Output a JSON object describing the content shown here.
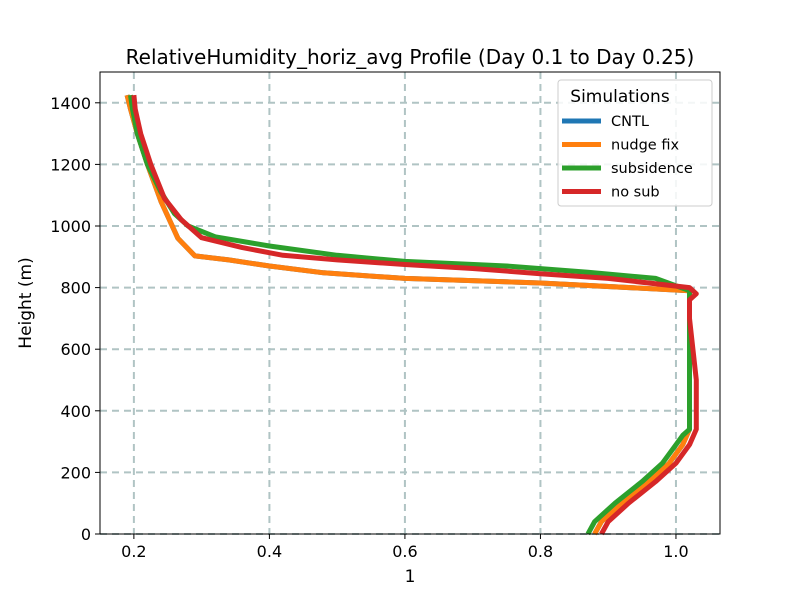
{
  "chart_data": {
    "type": "line",
    "title": "RelativeHumidity_horiz_avg Profile (Day 0.1 to Day 0.25)",
    "xlabel": "1",
    "ylabel": "Height (m)",
    "xlim": [
      0.15,
      1.065
    ],
    "ylim": [
      0,
      1500
    ],
    "xticks": [
      0.2,
      0.4,
      0.6,
      0.8,
      1.0
    ],
    "xtick_labels": [
      "0.2",
      "0.4",
      "0.6",
      "0.8",
      "1.0"
    ],
    "yticks": [
      0,
      200,
      400,
      600,
      800,
      1000,
      1200,
      1400
    ],
    "ytick_labels": [
      "0",
      "200",
      "400",
      "600",
      "800",
      "1000",
      "1200",
      "1400"
    ],
    "grid": true,
    "legend": {
      "title": "Simulations",
      "placement": "top-right"
    },
    "series": [
      {
        "name": "CNTL",
        "color": "#1f77b4",
        "points": [
          [
            0.88,
            0
          ],
          [
            0.89,
            40
          ],
          [
            0.92,
            100
          ],
          [
            0.96,
            170
          ],
          [
            0.99,
            230
          ],
          [
            1.01,
            290
          ],
          [
            1.02,
            340
          ],
          [
            1.02,
            400
          ],
          [
            1.02,
            500
          ],
          [
            1.02,
            600
          ],
          [
            1.02,
            700
          ],
          [
            1.02,
            760
          ],
          [
            1.02,
            790
          ],
          [
            0.8,
            815
          ],
          [
            0.6,
            830
          ],
          [
            0.48,
            848
          ],
          [
            0.4,
            870
          ],
          [
            0.34,
            890
          ],
          [
            0.29,
            903
          ],
          [
            0.265,
            960
          ],
          [
            0.24,
            1080
          ],
          [
            0.22,
            1200
          ],
          [
            0.205,
            1300
          ],
          [
            0.195,
            1380
          ],
          [
            0.19,
            1425
          ]
        ]
      },
      {
        "name": "nudge fix",
        "color": "#ff7f0e",
        "points": [
          [
            0.88,
            0
          ],
          [
            0.89,
            40
          ],
          [
            0.92,
            100
          ],
          [
            0.96,
            170
          ],
          [
            0.99,
            230
          ],
          [
            1.01,
            290
          ],
          [
            1.02,
            340
          ],
          [
            1.02,
            400
          ],
          [
            1.02,
            500
          ],
          [
            1.02,
            600
          ],
          [
            1.02,
            700
          ],
          [
            1.02,
            760
          ],
          [
            1.02,
            790
          ],
          [
            0.8,
            815
          ],
          [
            0.6,
            830
          ],
          [
            0.48,
            848
          ],
          [
            0.4,
            870
          ],
          [
            0.34,
            890
          ],
          [
            0.29,
            903
          ],
          [
            0.265,
            960
          ],
          [
            0.24,
            1080
          ],
          [
            0.22,
            1200
          ],
          [
            0.205,
            1300
          ],
          [
            0.195,
            1380
          ],
          [
            0.19,
            1425
          ]
        ]
      },
      {
        "name": "subsidence",
        "color": "#2ca02c",
        "points": [
          [
            0.87,
            0
          ],
          [
            0.88,
            40
          ],
          [
            0.91,
            100
          ],
          [
            0.95,
            170
          ],
          [
            0.98,
            230
          ],
          [
            1.0,
            290
          ],
          [
            1.01,
            320
          ],
          [
            1.02,
            340
          ],
          [
            1.02,
            400
          ],
          [
            1.02,
            500
          ],
          [
            1.02,
            600
          ],
          [
            1.02,
            700
          ],
          [
            1.02,
            780
          ],
          [
            1.02,
            790
          ],
          [
            0.97,
            830
          ],
          [
            0.87,
            850
          ],
          [
            0.75,
            870
          ],
          [
            0.6,
            885
          ],
          [
            0.5,
            905
          ],
          [
            0.4,
            935
          ],
          [
            0.32,
            965
          ],
          [
            0.28,
            1000
          ],
          [
            0.26,
            1040
          ],
          [
            0.24,
            1110
          ],
          [
            0.22,
            1200
          ],
          [
            0.205,
            1300
          ],
          [
            0.198,
            1380
          ],
          [
            0.195,
            1425
          ]
        ]
      },
      {
        "name": "no sub",
        "color": "#d62728",
        "points": [
          [
            0.89,
            0
          ],
          [
            0.9,
            40
          ],
          [
            0.93,
            100
          ],
          [
            0.97,
            170
          ],
          [
            1.0,
            230
          ],
          [
            1.02,
            290
          ],
          [
            1.03,
            340
          ],
          [
            1.03,
            400
          ],
          [
            1.03,
            500
          ],
          [
            1.025,
            600
          ],
          [
            1.02,
            700
          ],
          [
            1.02,
            760
          ],
          [
            1.03,
            780
          ],
          [
            1.02,
            800
          ],
          [
            0.9,
            830
          ],
          [
            0.8,
            845
          ],
          [
            0.7,
            862
          ],
          [
            0.6,
            875
          ],
          [
            0.5,
            890
          ],
          [
            0.42,
            905
          ],
          [
            0.36,
            930
          ],
          [
            0.3,
            962
          ],
          [
            0.27,
            1020
          ],
          [
            0.245,
            1090
          ],
          [
            0.225,
            1200
          ],
          [
            0.21,
            1300
          ],
          [
            0.202,
            1380
          ],
          [
            0.2,
            1425
          ]
        ]
      }
    ]
  }
}
